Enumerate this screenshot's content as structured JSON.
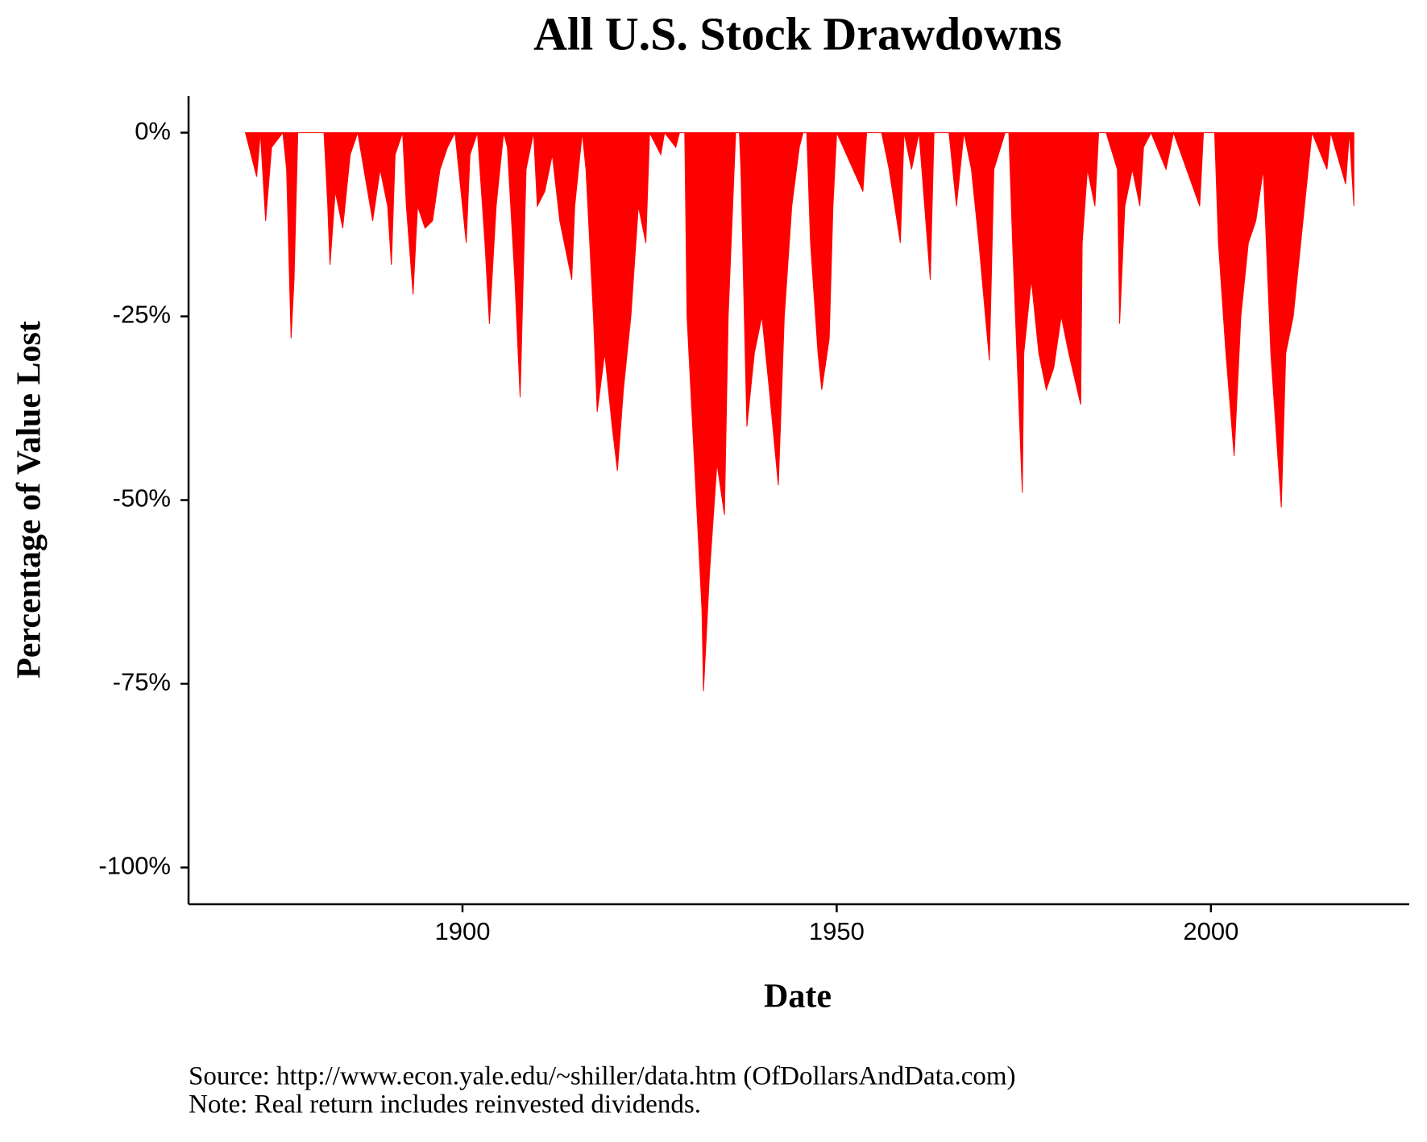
{
  "chart_data": {
    "type": "area",
    "title": "All U.S. Stock Drawdowns",
    "xlabel": "Date",
    "ylabel": "Percentage of Value Lost",
    "source": "Source:  http://www.econ.yale.edu/~shiller/data.htm (OfDollarsAndData.com)",
    "note": "Note: Real return includes reinvested dividends.",
    "color": "#ff0000",
    "xlim": [
      1863.4,
      2026.5
    ],
    "xticks": [
      1900,
      1950,
      2000
    ],
    "ylim": [
      -105,
      5
    ],
    "yticks": [
      {
        "value": 0,
        "label": "0%"
      },
      {
        "value": -25,
        "label": "-25%"
      },
      {
        "value": -50,
        "label": "-50%"
      },
      {
        "value": -75,
        "label": "-75%"
      },
      {
        "value": -100,
        "label": "-100%"
      }
    ],
    "x": [
      1871,
      1872.5,
      1873,
      1873.7,
      1874.5,
      1876,
      1876.5,
      1877.1,
      1877.5,
      1878,
      1881.5,
      1882,
      1882.3,
      1883,
      1884,
      1885,
      1886,
      1887,
      1888,
      1889,
      1890,
      1890.5,
      1891,
      1892,
      1892.5,
      1893.4,
      1894,
      1895,
      1896,
      1897,
      1898,
      1899,
      1899.5,
      1900.5,
      1901,
      1902,
      1903,
      1903.6,
      1904.5,
      1905.5,
      1906,
      1907,
      1907.7,
      1908.5,
      1909.5,
      1910,
      1911,
      1912,
      1913,
      1914.6,
      1915,
      1916,
      1916.5,
      1917.5,
      1918,
      1919,
      1920,
      1920.7,
      1921.5,
      1922.5,
      1923.5,
      1924.5,
      1925,
      1926.5,
      1927,
      1928.5,
      1929,
      1929.7,
      1930,
      1931,
      1932,
      1932.2,
      1933,
      1934,
      1935,
      1935.5,
      1936.5,
      1937,
      1937.2,
      1938,
      1939,
      1940,
      1941,
      1942.2,
      1943,
      1944,
      1945,
      1945.5,
      1946,
      1946.5,
      1947.5,
      1948,
      1949,
      1949.5,
      1950,
      1953.5,
      1954,
      1956,
      1957,
      1958.5,
      1959,
      1960,
      1961,
      1962.5,
      1963,
      1965,
      1966,
      1967,
      1968,
      1969,
      1970.4,
      1971,
      1972.5,
      1973,
      1973.5,
      1974.8,
      1975,
      1976,
      1977,
      1978,
      1979,
      1980,
      1981,
      1982.6,
      1982.8,
      1983.5,
      1984.5,
      1985,
      1986,
      1987.5,
      1987.8,
      1988.5,
      1989.5,
      1990.5,
      1991,
      1992,
      1994,
      1995,
      1998.5,
      1999,
      2000.5,
      2001,
      2002,
      2003.1,
      2004,
      2005,
      2006,
      2007,
      2008,
      2009.4,
      2010,
      2011,
      2012,
      2013.5,
      2015.5,
      2016,
      2018,
      2018.5,
      2019.1
    ],
    "values": [
      0,
      -6,
      0,
      -12,
      -2,
      0,
      -5,
      -28,
      -20,
      0,
      0,
      -10,
      -18,
      -8,
      -13,
      -3,
      0,
      -6,
      -12,
      -5,
      -10,
      -18,
      -3,
      0,
      -10,
      -22,
      -10,
      -13,
      -12,
      -5,
      -2,
      0,
      -5,
      -15,
      -3,
      0,
      -15,
      -26,
      -10,
      0,
      -2,
      -20,
      -36,
      -5,
      0,
      -10,
      -8,
      -3,
      -12,
      -20,
      -10,
      0,
      -5,
      -25,
      -38,
      -30,
      -40,
      -46,
      -35,
      -25,
      -10,
      -15,
      0,
      -3,
      0,
      -2,
      0,
      0,
      -25,
      -45,
      -65,
      -76,
      -60,
      -45,
      -52,
      -25,
      0,
      0,
      -5,
      -40,
      -30,
      -25,
      -35,
      -48,
      -25,
      -10,
      -2,
      0,
      0,
      -15,
      -30,
      -35,
      -28,
      -10,
      0,
      -8,
      0,
      0,
      -5,
      -15,
      0,
      -5,
      0,
      -20,
      0,
      0,
      -10,
      0,
      -5,
      -15,
      -31,
      -5,
      0,
      0,
      -15,
      -49,
      -30,
      -20,
      -30,
      -35,
      -32,
      -25,
      -30,
      -37,
      -15,
      -5,
      -10,
      0,
      0,
      -5,
      -26,
      -10,
      -5,
      -10,
      -2,
      0,
      -5,
      0,
      -10,
      0,
      0,
      -15,
      -30,
      -44,
      -25,
      -15,
      -12,
      -5,
      -30,
      -51,
      -30,
      -25,
      -15,
      0,
      -5,
      0,
      -7,
      0,
      -10
    ]
  }
}
